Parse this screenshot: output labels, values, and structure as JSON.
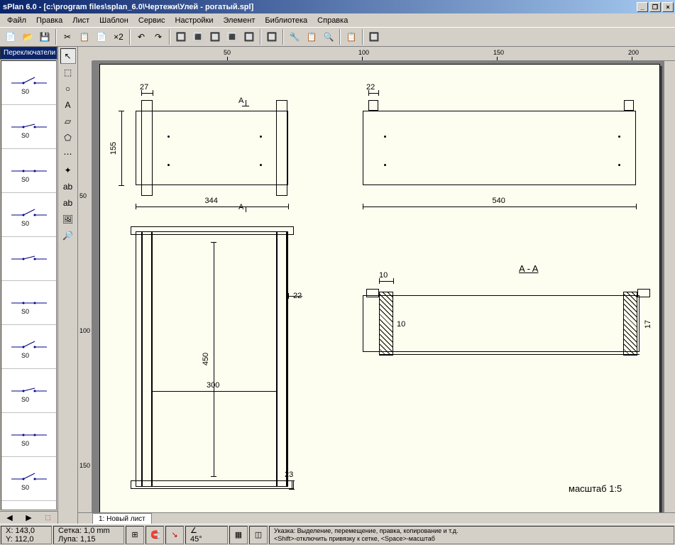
{
  "window": {
    "title": "sPlan 6.0 - [c:\\program files\\splan_6.0\\Чертежи\\Улей - рогатый.spl]"
  },
  "menu": [
    "Файл",
    "Правка",
    "Лист",
    "Шаблон",
    "Сервис",
    "Настройки",
    "Элемент",
    "Библиотека",
    "Справка"
  ],
  "toolbar_icons": [
    "📄",
    "📂",
    "💾",
    "|",
    "✂",
    "📋",
    "📄",
    "×2",
    "|",
    "↶",
    "↷",
    "|",
    "🔲",
    "🔳",
    "🔲",
    "🔳",
    "🔲",
    "|",
    "🔲",
    "|",
    "🔧",
    "📋",
    "🔍",
    "|",
    "📋",
    "|",
    "🔲"
  ],
  "category": "Переключатели",
  "symbols": [
    {
      "label": "S0"
    },
    {
      "label": "S0"
    },
    {
      "label": "S0"
    },
    {
      "label": "S0"
    },
    {
      "label": ""
    },
    {
      "label": "S0"
    },
    {
      "label": "S0"
    },
    {
      "label": "S0"
    },
    {
      "label": "S0"
    },
    {
      "label": "S0"
    }
  ],
  "tools": [
    "↖",
    "⬚",
    "○",
    "A",
    "▱",
    "⬠",
    "⋯",
    "✦",
    "ab",
    "ab",
    "🖼",
    "🔎"
  ],
  "ruler_h": [
    50,
    100,
    150,
    200
  ],
  "ruler_v": [
    50,
    100,
    150
  ],
  "drawing": {
    "dims": {
      "d27": "27",
      "d344": "344",
      "d155": "155",
      "d22a": "22",
      "d540": "540",
      "d22b": "22",
      "d450": "450",
      "d300": "300",
      "d23": "23",
      "d10a": "10",
      "d10b": "10",
      "d17": "17",
      "section": "A - A",
      "scale": "масштаб  1:5",
      "arrowA1": "A",
      "arrowA2": "A"
    }
  },
  "sheet_tab": "1: Новый лист",
  "status": {
    "coords_x": "X: 143,0",
    "coords_y": "Y: 112,0",
    "grid": "Сетка: 1,0 mm",
    "zoom": "Лупа: 1,15",
    "angle": "45°",
    "hint": "Указка: Выделение, перемещение, правка, копирование и т.д.\n<Shift>-отключить привязку к сетке, <Space>-масштаб"
  },
  "colors": {
    "titlebar_start": "#0a246a",
    "titlebar_end": "#a6caf0",
    "ui_bg": "#d4d0c8",
    "paper": "#fefef0",
    "canvas_bg": "#808080"
  }
}
